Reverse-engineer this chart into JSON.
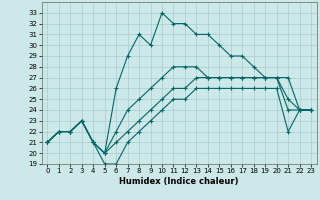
{
  "title": "",
  "xlabel": "Humidex (Indice chaleur)",
  "xlim": [
    -0.5,
    23.5
  ],
  "ylim": [
    19,
    34
  ],
  "yticks": [
    19,
    20,
    21,
    22,
    23,
    24,
    25,
    26,
    27,
    28,
    29,
    30,
    31,
    32,
    33
  ],
  "xticks": [
    0,
    1,
    2,
    3,
    4,
    5,
    6,
    7,
    8,
    9,
    10,
    11,
    12,
    13,
    14,
    15,
    16,
    17,
    18,
    19,
    20,
    21,
    22,
    23
  ],
  "bg_color": "#cce8e8",
  "grid_color": "#aacccc",
  "line_color": "#006666",
  "line_width": 0.8,
  "marker": "+",
  "marker_size": 3,
  "max_y": [
    21,
    22,
    22,
    23,
    21,
    20,
    26,
    29,
    31,
    30,
    33,
    32,
    32,
    31,
    31,
    30,
    29,
    29,
    28,
    27,
    27,
    25,
    24,
    24
  ],
  "mean_y": [
    21,
    22,
    22,
    23,
    21,
    20,
    22,
    24,
    25,
    26,
    27,
    28,
    28,
    28,
    27,
    27,
    27,
    27,
    27,
    27,
    27,
    27,
    24,
    24
  ],
  "q1_y": [
    21,
    22,
    22,
    23,
    21,
    20,
    21,
    22,
    23,
    24,
    25,
    26,
    26,
    27,
    27,
    27,
    27,
    27,
    27,
    27,
    27,
    24,
    24,
    24
  ],
  "min_y": [
    21,
    22,
    22,
    23,
    21,
    19,
    19,
    21,
    22,
    23,
    24,
    25,
    25,
    26,
    26,
    26,
    26,
    26,
    26,
    26,
    26,
    22,
    24,
    24
  ]
}
